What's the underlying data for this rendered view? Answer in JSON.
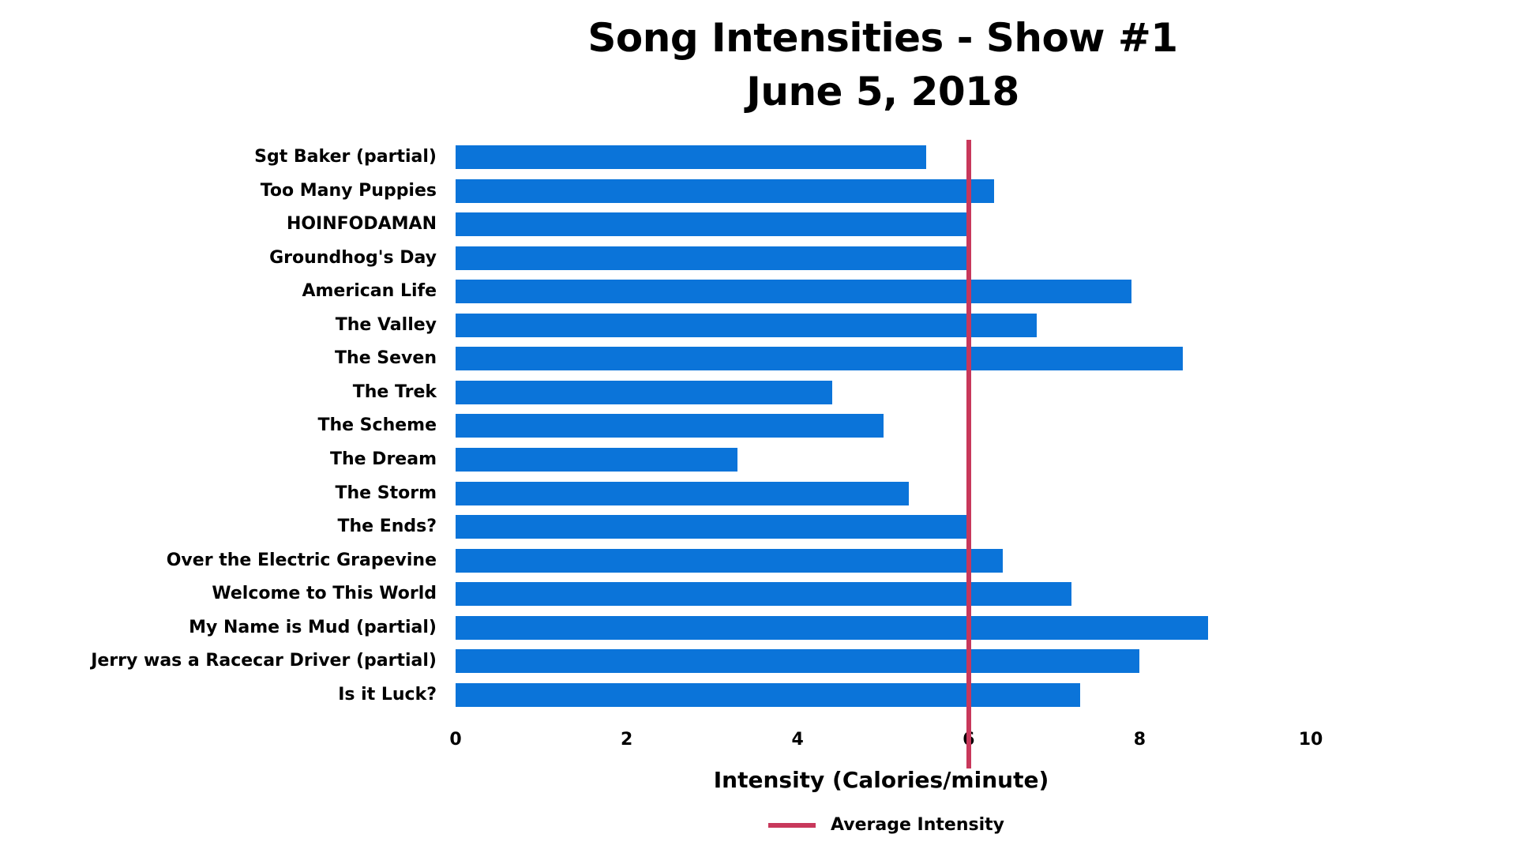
{
  "title": {
    "line1": "Song Intensities - Show #1",
    "line2": "June 5, 2018"
  },
  "colors": {
    "bar": "#0B74D9",
    "average_line": "#C8385B"
  },
  "x_axis": {
    "label": "Intensity (Calories/minute)",
    "ticks": [
      "0",
      "2",
      "4",
      "6",
      "8",
      "10"
    ]
  },
  "legend": {
    "average_label": "Average Intensity"
  },
  "chart_data": {
    "type": "bar",
    "orientation": "horizontal",
    "title": "Song Intensities - Show #1\nJune 5, 2018",
    "xlabel": "Intensity (Calories/minute)",
    "ylabel": "",
    "xlim": [
      0,
      10
    ],
    "x_ticks": [
      0,
      2,
      4,
      6,
      8,
      10
    ],
    "grid": false,
    "legend_position": "bottom",
    "categories": [
      "Sgt Baker (partial)",
      "Too Many Puppies",
      "HOINFODAMAN",
      "Groundhog's Day",
      "American Life",
      "The Valley",
      "The Seven",
      "The Trek",
      "The Scheme",
      "The Dream",
      "The Storm",
      "The Ends?",
      "Over the Electric Grapevine",
      "Welcome to This World",
      "My Name is Mud (partial)",
      "Jerry was a Racecar Driver (partial)",
      "Is it Luck?"
    ],
    "values": [
      5.5,
      6.3,
      6.0,
      6.0,
      7.9,
      6.8,
      8.5,
      4.4,
      5.0,
      3.3,
      5.3,
      6.0,
      6.4,
      7.2,
      8.8,
      8.0,
      7.3
    ],
    "reference_lines": [
      {
        "name": "Average Intensity",
        "axis": "x",
        "value": 6.0,
        "color": "#C8385B"
      }
    ]
  }
}
